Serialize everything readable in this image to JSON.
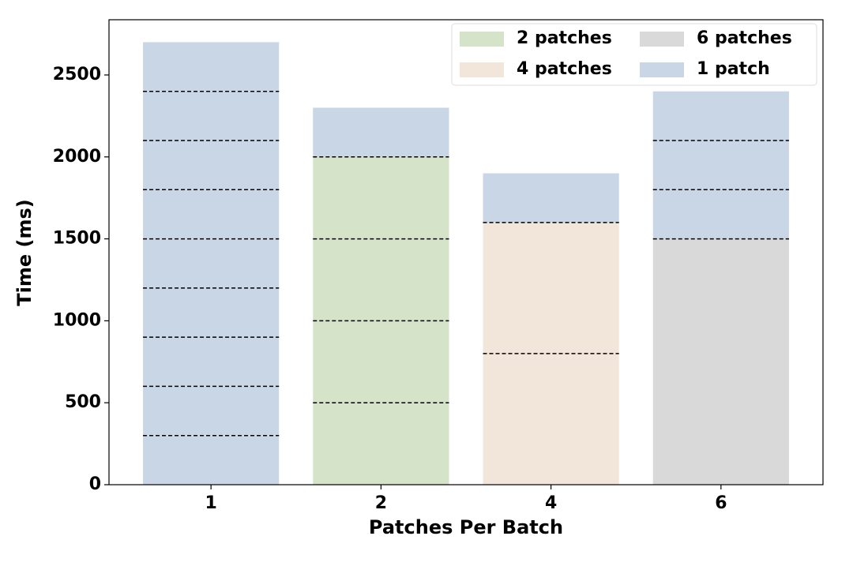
{
  "chart_data": {
    "type": "stacked-segment-bar",
    "xlabel": "Patches Per Batch",
    "ylabel": "Time (ms)",
    "categories": [
      "1",
      "2",
      "4",
      "6"
    ],
    "series": [
      {
        "name": "2 patches",
        "color": "#d5e3c9",
        "values": [
          null,
          [
            500,
            500,
            500,
            500
          ],
          null,
          null
        ]
      },
      {
        "name": "4 patches",
        "color": "#f2e6da",
        "values": [
          null,
          null,
          [
            800,
            800
          ],
          null
        ]
      },
      {
        "name": "6 patches",
        "color": "#d9d9d9",
        "values": [
          null,
          null,
          null,
          [
            1500
          ]
        ]
      },
      {
        "name": "1 patch",
        "color": "#c9d6e6",
        "values": [
          [
            300,
            300,
            300,
            300,
            300,
            300,
            300,
            300,
            300
          ],
          [
            300
          ],
          [
            300
          ],
          [
            300,
            300,
            300
          ]
        ]
      }
    ],
    "ylim": [
      0,
      2837
    ],
    "yticks": [
      0,
      500,
      1000,
      1500,
      2000,
      2500
    ],
    "legend": "upper right",
    "legend_columns": 2,
    "divider": "dashed"
  }
}
